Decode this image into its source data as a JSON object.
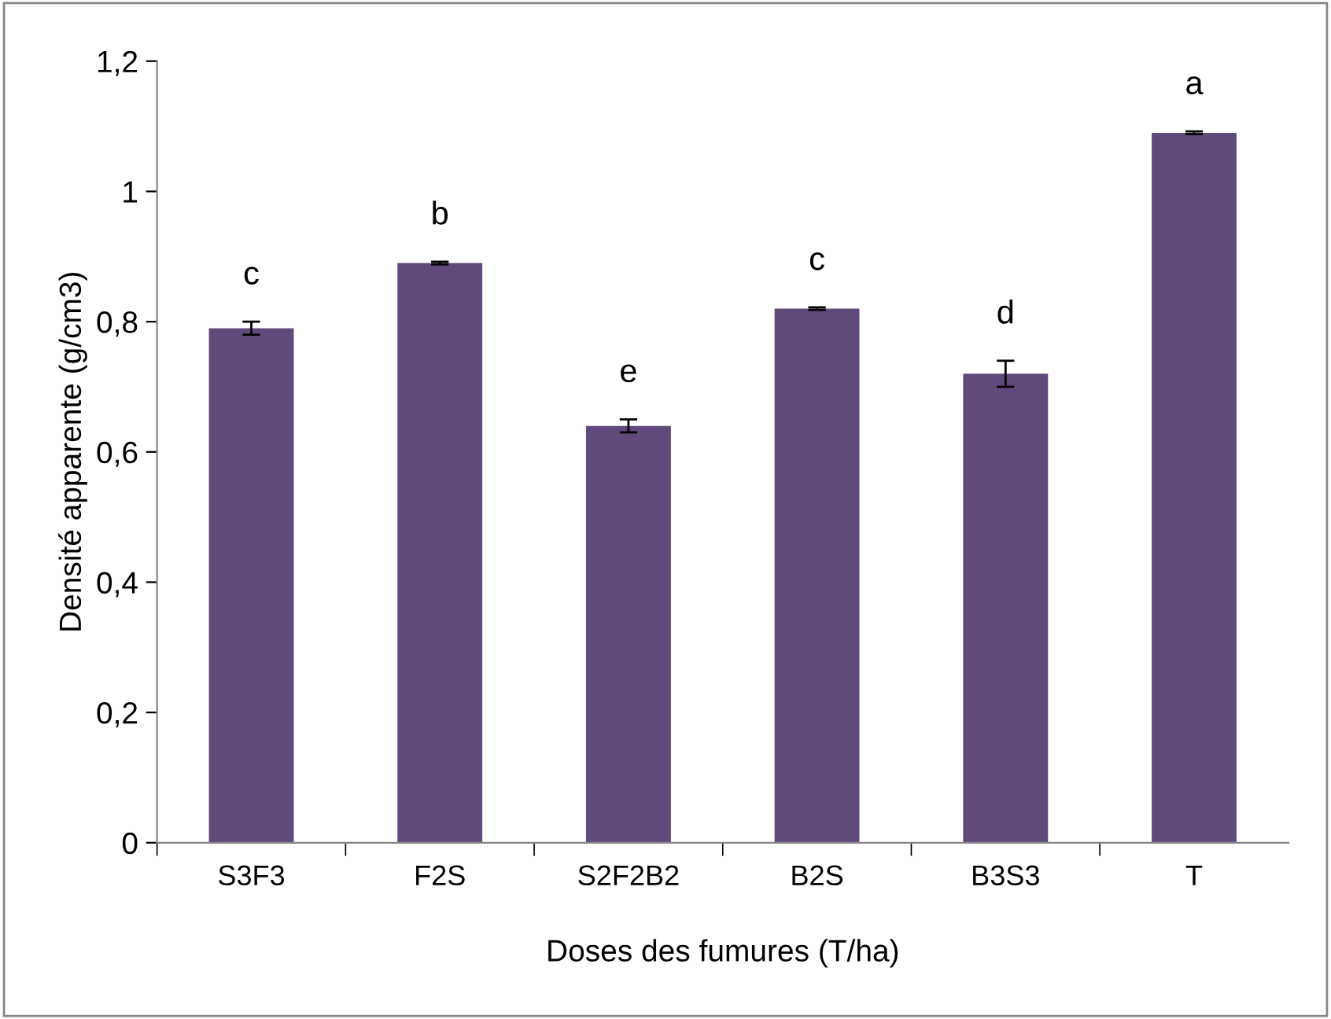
{
  "chart_data": {
    "type": "bar",
    "xlabel": "Doses des fumures (T/ha)",
    "ylabel": "Densité apparente (g/cm3)",
    "categories": [
      "S3F3",
      "F2S",
      "S2F2B2",
      "B2S",
      "B3S3",
      "T"
    ],
    "values": [
      0.79,
      0.89,
      0.64,
      0.82,
      0.72,
      1.09
    ],
    "errors": [
      0.01,
      0.002,
      0.01,
      0.002,
      0.02,
      0.002
    ],
    "color": "#604a7b",
    "ylim": [
      0,
      1.2
    ],
    "yticks": [
      {
        "value": 0,
        "label": "0"
      },
      {
        "value": 0.2,
        "label": "0,2"
      },
      {
        "value": 0.4,
        "label": "0,4"
      },
      {
        "value": 0.6,
        "label": "0,6"
      },
      {
        "value": 0.8,
        "label": "0,8"
      },
      {
        "value": 1,
        "label": "1"
      },
      {
        "value": 1.2,
        "label": "1,2"
      }
    ],
    "annotations": [
      "c",
      "b",
      "e",
      "c",
      "d",
      "a"
    ],
    "grid": false,
    "legend": false
  }
}
